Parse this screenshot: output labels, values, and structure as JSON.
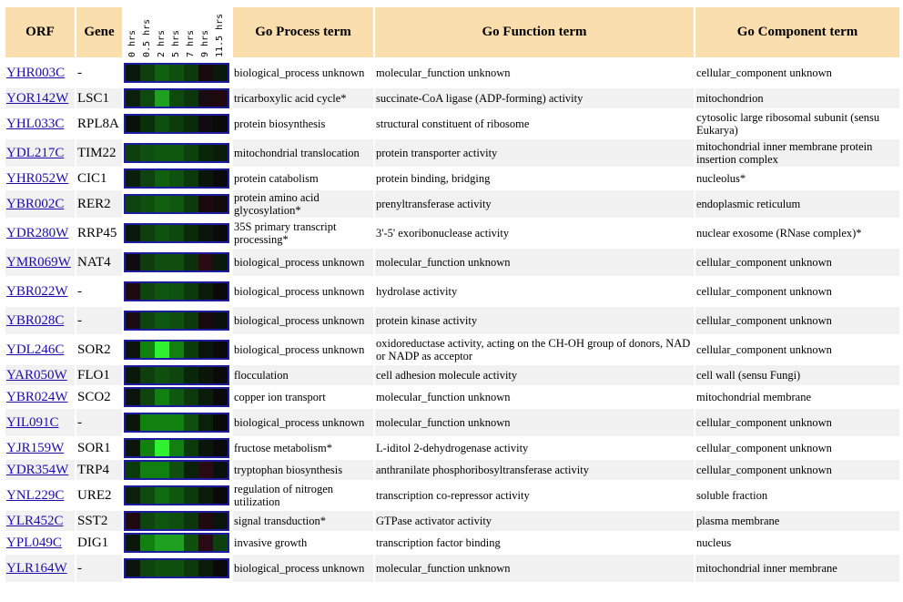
{
  "headers": {
    "orf": "ORF",
    "gene": "Gene",
    "timepoints": [
      "0 hrs",
      "0.5 hrs",
      "2 hrs",
      "5 hrs",
      "7 hrs",
      "9 hrs",
      "11.5 hrs"
    ],
    "process": "Go Process term",
    "function": "Go Function term",
    "component": "Go Component term"
  },
  "rows": [
    {
      "orf": "YHR003C",
      "gene": "-",
      "process": "biological_process unknown",
      "function": "molecular_function unknown",
      "component": "cellular_component unknown",
      "heat": [
        "#0a1a0a",
        "#0e3d0e",
        "#106010",
        "#0f500f",
        "#0c3a0c",
        "#1a0a10",
        "#0a1a0a"
      ]
    },
    {
      "orf": "YOR142W",
      "gene": "LSC1",
      "process": "tricarboxylic acid cycle*",
      "function": "succinate-CoA ligase (ADP-forming) activity",
      "component": "mitochondrion",
      "heat": [
        "#0a200a",
        "#0e4a0e",
        "#20a020",
        "#0e4a0e",
        "#0c360c",
        "#1a0a12",
        "#200a10"
      ]
    },
    {
      "orf": "YHL033C",
      "gene": "RPL8A",
      "process": "protein biosynthesis",
      "function": "structural constituent of ribosome",
      "component": "cytosolic large ribosomal subunit (sensu Eukarya)",
      "heat": [
        "#081208",
        "#0a300a",
        "#0e4e0e",
        "#0c3c0c",
        "#0a2a0a",
        "#120a12",
        "#0a0a0a"
      ]
    },
    {
      "orf": "YDL217C",
      "gene": "TIM22",
      "process": "mitochondrial translocation",
      "function": "protein transporter activity",
      "component": "mitochondrial inner membrane protein insertion complex",
      "heat": [
        "#0e400e",
        "#0f4f0f",
        "#0f560f",
        "#0f560f",
        "#0c400c",
        "#0a260a",
        "#0a1c0a"
      ]
    },
    {
      "orf": "YHR052W",
      "gene": "CIC1",
      "process": "protein catabolism",
      "function": "protein binding, bridging",
      "component": "nucleolus*",
      "heat": [
        "#0a1e0a",
        "#0e420e",
        "#106010",
        "#0f520f",
        "#0c3a0c",
        "#0a160a",
        "#0a0a0a"
      ]
    },
    {
      "orf": "YBR002C",
      "gene": "RER2",
      "process": "protein amino acid glycosylation*",
      "function": "prenyltransferase activity",
      "component": "endoplasmic reticulum",
      "heat": [
        "#0e420e",
        "#0f500f",
        "#106010",
        "#0f580f",
        "#0c3a0c",
        "#1a0a10",
        "#120a0a"
      ]
    },
    {
      "orf": "YDR280W",
      "gene": "RRP45",
      "process": "35S primary transcript processing*",
      "function": "3'-5' exoribonuclease activity",
      "component": "nuclear exosome (RNase complex)*",
      "heat": [
        "#0a1a0a",
        "#0e3e0e",
        "#0f520f",
        "#0e480e",
        "#0a2a0a",
        "#0a140a",
        "#0a0a0a"
      ]
    },
    {
      "orf": "YMR069W",
      "gene": "NAT4",
      "process": "biological_process unknown",
      "function": "molecular_function unknown",
      "component": "cellular_component unknown",
      "heat": [
        "#120a12",
        "#0e3c0e",
        "#0f4e0f",
        "#0f4e0f",
        "#0c300c",
        "#2a0a14",
        "#0a1a0a"
      ]
    },
    {
      "orf": "YBR022W",
      "gene": "-",
      "process": "biological_process unknown",
      "function": "hydrolase activity",
      "component": "cellular_component unknown",
      "heat": [
        "#200a10",
        "#0e440e",
        "#0f560f",
        "#0f520f",
        "#0c3a0c",
        "#0a1c0a",
        "#0a0a0a"
      ]
    },
    {
      "orf": "YBR028C",
      "gene": "-",
      "process": "biological_process unknown",
      "function": "protein kinase activity",
      "component": "cellular_component unknown",
      "heat": [
        "#1a0a12",
        "#0e440e",
        "#0f580f",
        "#0f500f",
        "#0c3a0c",
        "#1a0a10",
        "#0a100a"
      ]
    },
    {
      "orf": "YDL246C",
      "gene": "SOR2",
      "process": "biological_process unknown",
      "function": "oxidoreductase activity, acting on the CH-OH group of donors, NAD or NADP as acceptor",
      "component": "cellular_component unknown",
      "heat": [
        "#0a140a",
        "#108010",
        "#30f030",
        "#108010",
        "#0c3a0c",
        "#0a140a",
        "#0a0a0a"
      ]
    },
    {
      "orf": "YAR050W",
      "gene": "FLO1",
      "process": "flocculation",
      "function": "cell adhesion molecule activity",
      "component": "cell wall (sensu Fungi)",
      "heat": [
        "#0a1a0a",
        "#0e3e0e",
        "#0f500f",
        "#0e440e",
        "#0a260a",
        "#0a160a",
        "#0a0a0a"
      ]
    },
    {
      "orf": "YBR024W",
      "gene": "SCO2",
      "process": "copper ion transport",
      "function": "molecular_function unknown",
      "component": "mitochondrial membrane",
      "heat": [
        "#0a140a",
        "#0e440e",
        "#108010",
        "#0f580f",
        "#0c3a0c",
        "#0a1c0a",
        "#0a0a0a"
      ]
    },
    {
      "orf": "YIL091C",
      "gene": "-",
      "process": "biological_process unknown",
      "function": "molecular_function unknown",
      "component": "cellular_component unknown",
      "heat": [
        "#0a160a",
        "#108010",
        "#108010",
        "#108010",
        "#0f500f",
        "#0a200a",
        "#0a0a0a"
      ]
    },
    {
      "orf": "YJR159W",
      "gene": "SOR1",
      "process": "fructose metabolism*",
      "function": "L-iditol 2-dehydrogenase activity",
      "component": "cellular_component unknown",
      "heat": [
        "#0a160a",
        "#108010",
        "#30f030",
        "#108010",
        "#0c3a0c",
        "#0a160a",
        "#0a0a0a"
      ]
    },
    {
      "orf": "YDR354W",
      "gene": "TRP4",
      "process": "tryptophan biosynthesis",
      "function": "anthranilate phosphoribosyltransferase activity",
      "component": "cellular_component unknown",
      "heat": [
        "#0c3a0c",
        "#108010",
        "#108010",
        "#0f500f",
        "#0a200a",
        "#2a0a14",
        "#0a100a"
      ]
    },
    {
      "orf": "YNL229C",
      "gene": "URE2",
      "process": "regulation of nitrogen utilization",
      "function": "transcription co-repressor activity",
      "component": "soluble fraction",
      "heat": [
        "#0a200a",
        "#0e4a0e",
        "#106c10",
        "#0f560f",
        "#0c3a0c",
        "#0a1c0a",
        "#0a0a0a"
      ]
    },
    {
      "orf": "YLR452C",
      "gene": "SST2",
      "process": "signal transduction*",
      "function": "GTPase activator activity",
      "component": "plasma membrane",
      "heat": [
        "#200a10",
        "#0e440e",
        "#0f560f",
        "#0f4e0f",
        "#0c360c",
        "#200a10",
        "#0a140a"
      ]
    },
    {
      "orf": "YPL049C",
      "gene": "DIG1",
      "process": "invasive growth",
      "function": "transcription factor binding",
      "component": "nucleus",
      "heat": [
        "#0a180a",
        "#108010",
        "#20a020",
        "#20a020",
        "#0f500f",
        "#2a0a14",
        "#0e400e"
      ]
    },
    {
      "orf": "YLR164W",
      "gene": "-",
      "process": "biological_process unknown",
      "function": "molecular_function unknown",
      "component": "mitochondrial inner membrane",
      "heat": [
        "#0a140a",
        "#0e440e",
        "#0f500f",
        "#0f500f",
        "#0c3a0c",
        "#0a1c0a",
        "#0a0a0a"
      ]
    }
  ]
}
